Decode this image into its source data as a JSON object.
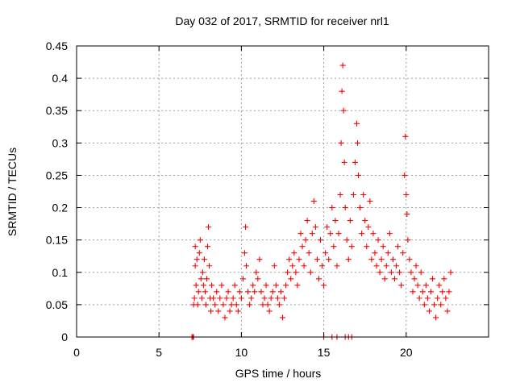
{
  "chart_data": {
    "type": "scatter",
    "title": "Day 032 of 2017, SRMTID for receiver nrl1",
    "xlabel": "GPS time / hours",
    "ylabel": "SRMTID / TECUs",
    "xlim": [
      0,
      25
    ],
    "ylim": [
      0,
      0.45
    ],
    "xticks": [
      0,
      5,
      10,
      15,
      20
    ],
    "xtick_labels": [
      "0",
      "5",
      "10",
      "15",
      "20"
    ],
    "yticks": [
      0,
      0.05,
      0.1,
      0.15,
      0.2,
      0.25,
      0.3,
      0.35,
      0.4,
      0.45
    ],
    "ytick_labels": [
      "0",
      "0.05",
      "0.1",
      "0.15",
      "0.2",
      "0.25",
      "0.3",
      "0.35",
      "0.4",
      "0.45"
    ],
    "grid": true,
    "marker": "+",
    "color": "#ff0000",
    "series": [
      {
        "name": "SRMTID",
        "points": [
          [
            7.0,
            0.0
          ],
          [
            7.05,
            0.0
          ],
          [
            7.1,
            0.0
          ],
          [
            7.1,
            0.05
          ],
          [
            7.15,
            0.06
          ],
          [
            7.2,
            0.11
          ],
          [
            7.2,
            0.14
          ],
          [
            7.25,
            0.08
          ],
          [
            7.3,
            0.12
          ],
          [
            7.35,
            0.05
          ],
          [
            7.4,
            0.07
          ],
          [
            7.45,
            0.13
          ],
          [
            7.5,
            0.15
          ],
          [
            7.55,
            0.09
          ],
          [
            7.6,
            0.06
          ],
          [
            7.65,
            0.1
          ],
          [
            7.7,
            0.08
          ],
          [
            7.75,
            0.12
          ],
          [
            7.8,
            0.07
          ],
          [
            7.85,
            0.05
          ],
          [
            7.9,
            0.09
          ],
          [
            7.95,
            0.14
          ],
          [
            8.0,
            0.17
          ],
          [
            8.05,
            0.11
          ],
          [
            8.1,
            0.06
          ],
          [
            8.15,
            0.04
          ],
          [
            8.2,
            0.08
          ],
          [
            8.3,
            0.06
          ],
          [
            8.4,
            0.05
          ],
          [
            8.5,
            0.07
          ],
          [
            8.6,
            0.04
          ],
          [
            8.7,
            0.06
          ],
          [
            8.8,
            0.08
          ],
          [
            8.9,
            0.05
          ],
          [
            9.0,
            0.03
          ],
          [
            9.1,
            0.06
          ],
          [
            9.2,
            0.07
          ],
          [
            9.3,
            0.04
          ],
          [
            9.4,
            0.05
          ],
          [
            9.5,
            0.06
          ],
          [
            9.6,
            0.08
          ],
          [
            9.7,
            0.05
          ],
          [
            9.8,
            0.04
          ],
          [
            9.9,
            0.07
          ],
          [
            10.0,
            0.06
          ],
          [
            10.1,
            0.09
          ],
          [
            10.2,
            0.13
          ],
          [
            10.25,
            0.17
          ],
          [
            10.3,
            0.11
          ],
          [
            10.4,
            0.07
          ],
          [
            10.5,
            0.05
          ],
          [
            10.6,
            0.06
          ],
          [
            10.7,
            0.08
          ],
          [
            10.8,
            0.07
          ],
          [
            10.9,
            0.1
          ],
          [
            11.0,
            0.09
          ],
          [
            11.1,
            0.12
          ],
          [
            11.2,
            0.07
          ],
          [
            11.3,
            0.05
          ],
          [
            11.4,
            0.06
          ],
          [
            11.5,
            0.08
          ],
          [
            11.6,
            0.05
          ],
          [
            11.7,
            0.04
          ],
          [
            11.8,
            0.06
          ],
          [
            11.9,
            0.07
          ],
          [
            12.0,
            0.11
          ],
          [
            12.1,
            0.08
          ],
          [
            12.2,
            0.06
          ],
          [
            12.3,
            0.05
          ],
          [
            12.4,
            0.07
          ],
          [
            12.5,
            0.03
          ],
          [
            12.6,
            0.06
          ],
          [
            12.7,
            0.08
          ],
          [
            12.8,
            0.1
          ],
          [
            12.9,
            0.12
          ],
          [
            13.0,
            0.09
          ],
          [
            13.1,
            0.11
          ],
          [
            13.2,
            0.13
          ],
          [
            13.3,
            0.1
          ],
          [
            13.4,
            0.08
          ],
          [
            13.5,
            0.12
          ],
          [
            13.6,
            0.16
          ],
          [
            13.7,
            0.14
          ],
          [
            13.8,
            0.11
          ],
          [
            13.9,
            0.15
          ],
          [
            14.0,
            0.18
          ],
          [
            14.1,
            0.13
          ],
          [
            14.2,
            0.1
          ],
          [
            14.3,
            0.16
          ],
          [
            14.4,
            0.21
          ],
          [
            14.5,
            0.17
          ],
          [
            14.6,
            0.12
          ],
          [
            14.7,
            0.09
          ],
          [
            14.8,
            0.15
          ],
          [
            14.9,
            0.11
          ],
          [
            15.0,
            0.08
          ],
          [
            15.0,
            0.0
          ],
          [
            15.1,
            0.13
          ],
          [
            15.2,
            0.17
          ],
          [
            15.3,
            0.12
          ],
          [
            15.4,
            0.16
          ],
          [
            15.5,
            0.2
          ],
          [
            15.5,
            0.0
          ],
          [
            15.6,
            0.14
          ],
          [
            15.7,
            0.18
          ],
          [
            15.8,
            0.11
          ],
          [
            15.8,
            0.0
          ],
          [
            15.9,
            0.16
          ],
          [
            16.0,
            0.22
          ],
          [
            16.05,
            0.3
          ],
          [
            16.1,
            0.38
          ],
          [
            16.15,
            0.42
          ],
          [
            16.2,
            0.35
          ],
          [
            16.25,
            0.27
          ],
          [
            16.3,
            0.2
          ],
          [
            16.3,
            0.0
          ],
          [
            16.4,
            0.15
          ],
          [
            16.5,
            0.12
          ],
          [
            16.5,
            0.0
          ],
          [
            16.6,
            0.18
          ],
          [
            16.7,
            0.14
          ],
          [
            16.7,
            0.0
          ],
          [
            16.8,
            0.22
          ],
          [
            16.9,
            0.27
          ],
          [
            17.0,
            0.33
          ],
          [
            17.05,
            0.3
          ],
          [
            17.1,
            0.25
          ],
          [
            17.2,
            0.2
          ],
          [
            17.3,
            0.16
          ],
          [
            17.4,
            0.22
          ],
          [
            17.5,
            0.18
          ],
          [
            17.6,
            0.14
          ],
          [
            17.7,
            0.17
          ],
          [
            17.8,
            0.21
          ],
          [
            17.9,
            0.12
          ],
          [
            18.0,
            0.16
          ],
          [
            18.1,
            0.13
          ],
          [
            18.2,
            0.11
          ],
          [
            18.3,
            0.15
          ],
          [
            18.4,
            0.1
          ],
          [
            18.5,
            0.12
          ],
          [
            18.6,
            0.14
          ],
          [
            18.7,
            0.09
          ],
          [
            18.8,
            0.11
          ],
          [
            18.9,
            0.13
          ],
          [
            19.0,
            0.16
          ],
          [
            19.1,
            0.1
          ],
          [
            19.2,
            0.12
          ],
          [
            19.3,
            0.09
          ],
          [
            19.4,
            0.11
          ],
          [
            19.5,
            0.14
          ],
          [
            19.6,
            0.1
          ],
          [
            19.7,
            0.08
          ],
          [
            19.8,
            0.13
          ],
          [
            19.9,
            0.25
          ],
          [
            19.95,
            0.31
          ],
          [
            20.0,
            0.22
          ],
          [
            20.05,
            0.19
          ],
          [
            20.1,
            0.15
          ],
          [
            20.2,
            0.12
          ],
          [
            20.3,
            0.1
          ],
          [
            20.4,
            0.07
          ],
          [
            20.5,
            0.09
          ],
          [
            20.6,
            0.11
          ],
          [
            20.7,
            0.08
          ],
          [
            20.8,
            0.06
          ],
          [
            20.9,
            0.1
          ],
          [
            21.0,
            0.07
          ],
          [
            21.1,
            0.05
          ],
          [
            21.2,
            0.08
          ],
          [
            21.3,
            0.06
          ],
          [
            21.4,
            0.04
          ],
          [
            21.5,
            0.07
          ],
          [
            21.6,
            0.09
          ],
          [
            21.7,
            0.05
          ],
          [
            21.8,
            0.03
          ],
          [
            21.9,
            0.06
          ],
          [
            22.0,
            0.08
          ],
          [
            22.1,
            0.05
          ],
          [
            22.2,
            0.07
          ],
          [
            22.3,
            0.09
          ],
          [
            22.4,
            0.06
          ],
          [
            22.5,
            0.04
          ],
          [
            22.6,
            0.07
          ],
          [
            22.7,
            0.1
          ]
        ]
      }
    ]
  }
}
